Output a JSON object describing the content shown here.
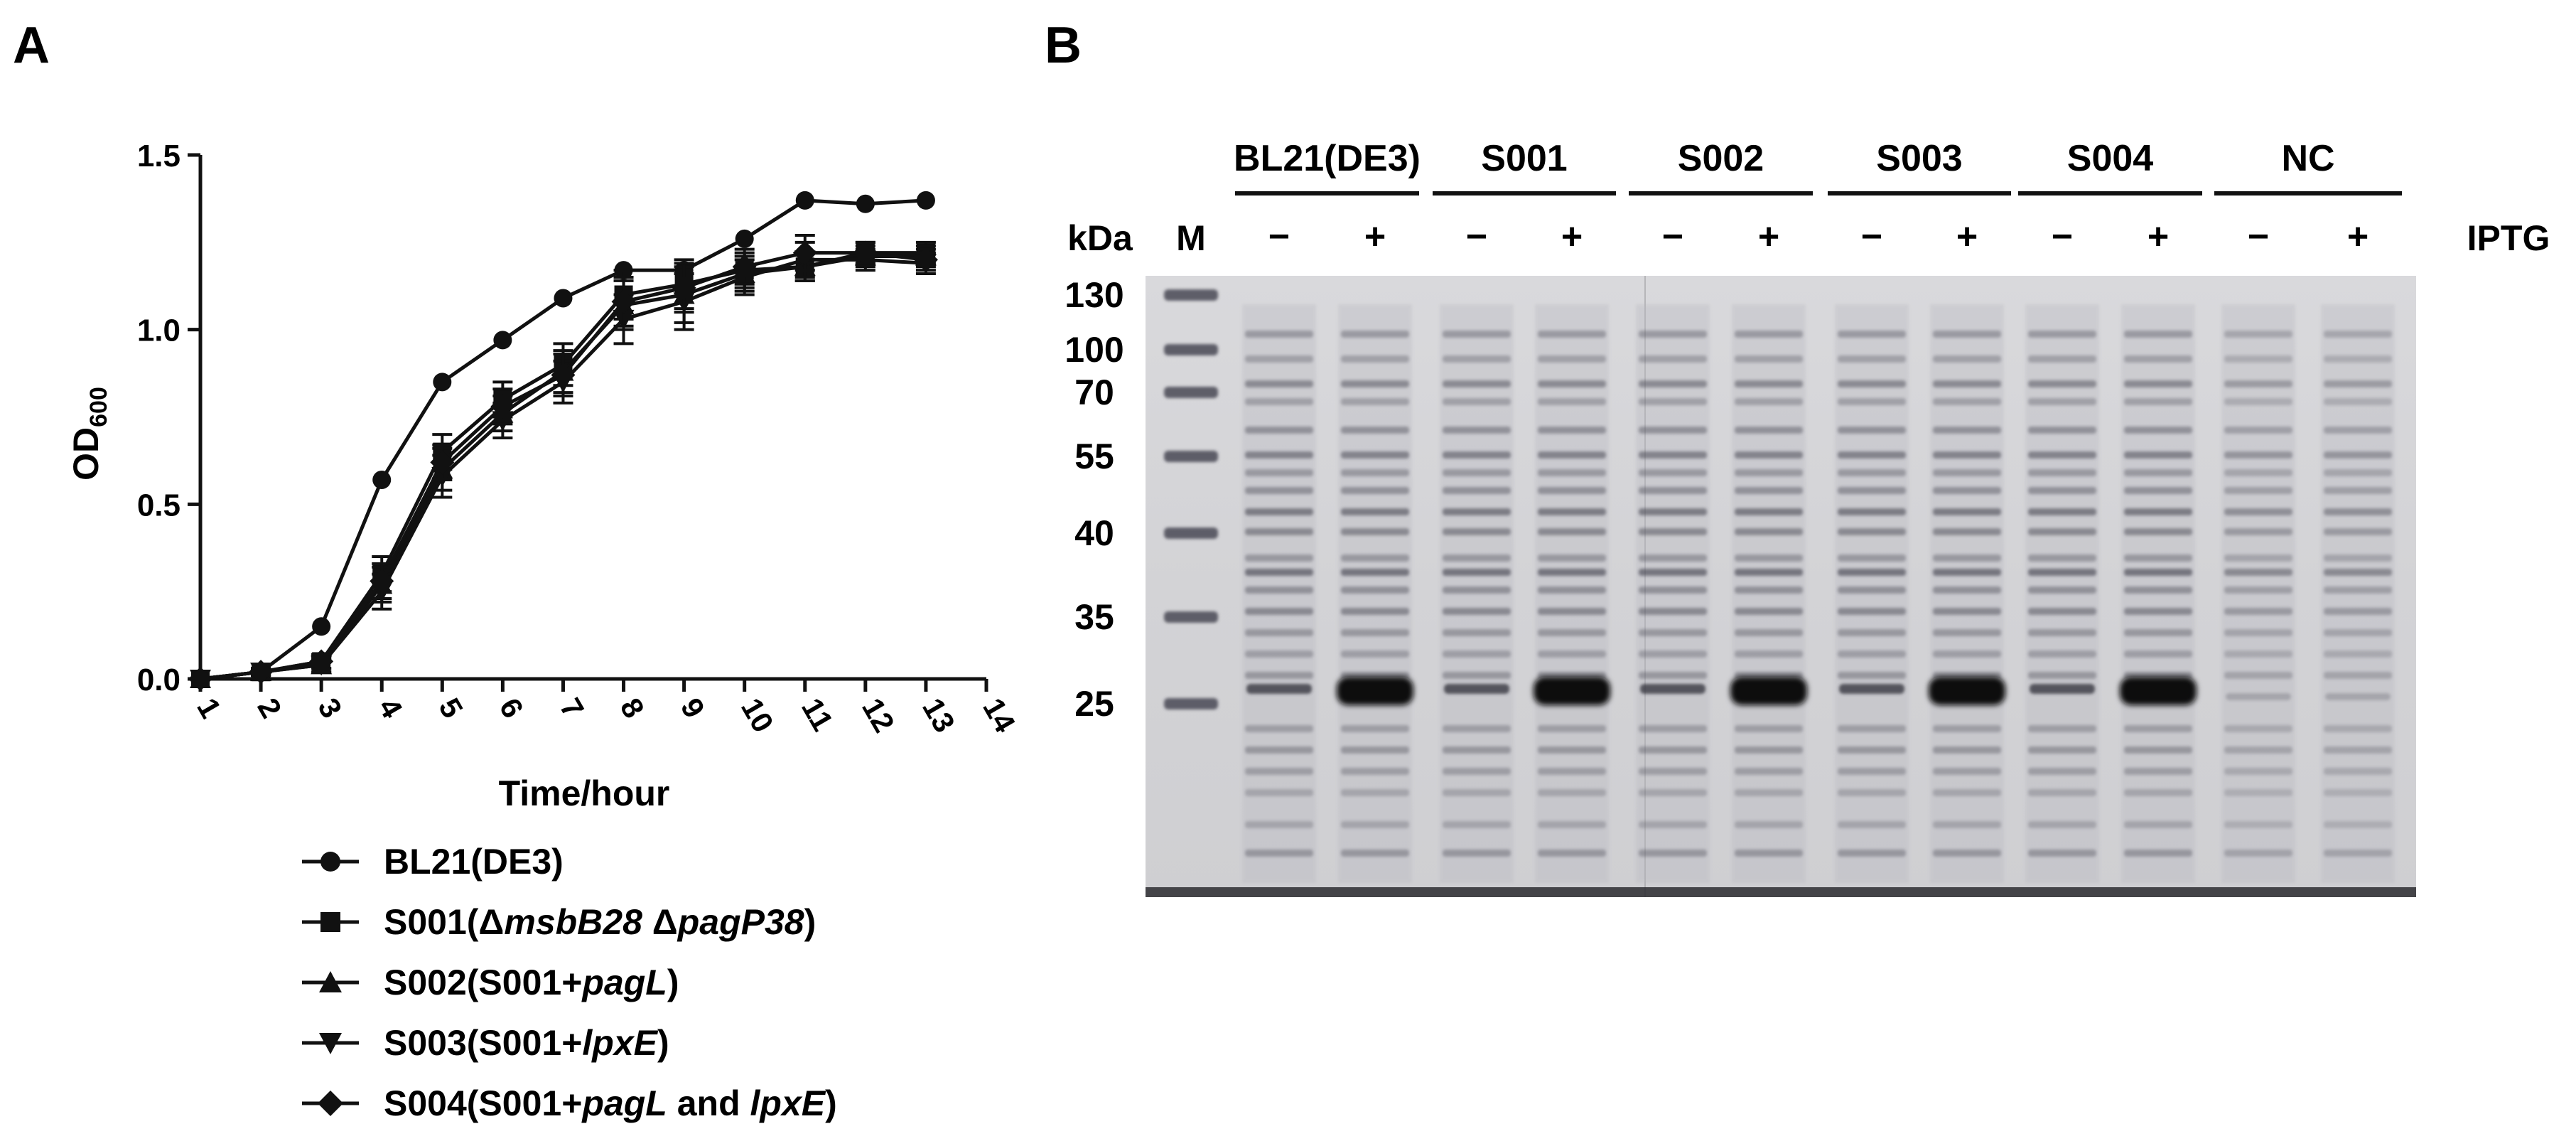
{
  "panels": {
    "a_label": "A",
    "b_label": "B"
  },
  "chart_data": {
    "type": "line",
    "xlabel": "Time/hour",
    "ylabel_main": "OD",
    "ylabel_sub": "600",
    "xlim": [
      1,
      14
    ],
    "ylim": [
      0,
      1.5
    ],
    "xticks": [
      "1",
      "2",
      "3",
      "4",
      "5",
      "6",
      "7",
      "8",
      "9",
      "10",
      "11",
      "12",
      "13",
      "14"
    ],
    "yticks": [
      "0.0",
      "0.5",
      "1.0",
      "1.5"
    ],
    "grid": false,
    "legend_position": "bottom",
    "x": [
      1,
      2,
      3,
      4,
      5,
      6,
      7,
      8,
      9,
      10,
      11,
      12,
      13
    ],
    "series": [
      {
        "name": "BL21(DE3)",
        "marker": "circle",
        "legend": [
          {
            "t": "BL21(DE3)",
            "i": false
          }
        ],
        "values": [
          0.0,
          0.02,
          0.15,
          0.57,
          0.85,
          0.97,
          1.09,
          1.17,
          1.17,
          1.26,
          1.37,
          1.36,
          1.37
        ],
        "errors": [
          0,
          0,
          0,
          0,
          0,
          0,
          0,
          0,
          0,
          0,
          0,
          0,
          0
        ]
      },
      {
        "name": "S001(ΔmsbB28 ΔpagP38)",
        "marker": "square",
        "legend": [
          {
            "t": "S001(Δ",
            "i": false
          },
          {
            "t": "msbB28",
            "i": true
          },
          {
            "t": " Δ",
            "i": false
          },
          {
            "t": "pagP38",
            "i": true
          },
          {
            "t": ")",
            "i": false
          }
        ],
        "values": [
          0.0,
          0.02,
          0.05,
          0.3,
          0.65,
          0.8,
          0.9,
          1.1,
          1.13,
          1.17,
          1.18,
          1.22,
          1.22
        ],
        "errors": [
          0,
          0.01,
          0.02,
          0.05,
          0.05,
          0.05,
          0.06,
          0.07,
          0.07,
          0.05,
          0.04,
          0.03,
          0.03
        ]
      },
      {
        "name": "S002(S001+pagL)",
        "marker": "triangle-up",
        "legend": [
          {
            "t": "S002(S001+",
            "i": false
          },
          {
            "t": "pagL",
            "i": true
          },
          {
            "t": ")",
            "i": false
          }
        ],
        "values": [
          0.0,
          0.02,
          0.04,
          0.27,
          0.6,
          0.76,
          0.88,
          1.07,
          1.1,
          1.16,
          1.18,
          1.21,
          1.21
        ],
        "errors": [
          0,
          0.01,
          0.02,
          0.05,
          0.06,
          0.05,
          0.06,
          0.07,
          0.08,
          0.05,
          0.04,
          0.03,
          0.03
        ]
      },
      {
        "name": "S003(S001+lpxE)",
        "marker": "triangle-down",
        "legend": [
          {
            "t": "S003(S001+",
            "i": false
          },
          {
            "t": "lpxE",
            "i": true
          },
          {
            "t": ")",
            "i": false
          }
        ],
        "values": [
          0.0,
          0.02,
          0.04,
          0.25,
          0.58,
          0.74,
          0.85,
          1.03,
          1.08,
          1.15,
          1.2,
          1.2,
          1.19
        ],
        "errors": [
          0,
          0.01,
          0.02,
          0.05,
          0.06,
          0.05,
          0.06,
          0.07,
          0.08,
          0.05,
          0.05,
          0.03,
          0.03
        ]
      },
      {
        "name": "S004(S001+pagL and lpxE)",
        "marker": "diamond",
        "legend": [
          {
            "t": "S004(S001+",
            "i": false
          },
          {
            "t": "pagL",
            "i": true
          },
          {
            "t": " and ",
            "i": false
          },
          {
            "t": "lpxE",
            "i": true
          },
          {
            "t": ")",
            "i": false
          }
        ],
        "values": [
          0.0,
          0.02,
          0.05,
          0.28,
          0.62,
          0.78,
          0.87,
          1.08,
          1.12,
          1.18,
          1.22,
          1.22,
          1.2
        ],
        "errors": [
          0,
          0.01,
          0.02,
          0.05,
          0.05,
          0.05,
          0.06,
          0.07,
          0.07,
          0.05,
          0.05,
          0.03,
          0.03
        ]
      }
    ]
  },
  "gel": {
    "kda_label": "kDa",
    "marker_label": "M",
    "iptg_label": "IPTG",
    "minus": "−",
    "plus": "+",
    "markers": [
      {
        "label": "130",
        "kda": 130
      },
      {
        "label": "100",
        "kda": 100
      },
      {
        "label": "70",
        "kda": 70
      },
      {
        "label": "55",
        "kda": 55
      },
      {
        "label": "40",
        "kda": 40
      },
      {
        "label": "35",
        "kda": 35
      },
      {
        "label": "25",
        "kda": 25
      }
    ],
    "strains": [
      {
        "name": "BL21(DE3)",
        "overexpressed": true
      },
      {
        "name": "S001",
        "overexpressed": true
      },
      {
        "name": "S002",
        "overexpressed": true
      },
      {
        "name": "S003",
        "overexpressed": true
      },
      {
        "name": "S004",
        "overexpressed": true
      },
      {
        "name": "NC",
        "overexpressed": false
      }
    ]
  }
}
